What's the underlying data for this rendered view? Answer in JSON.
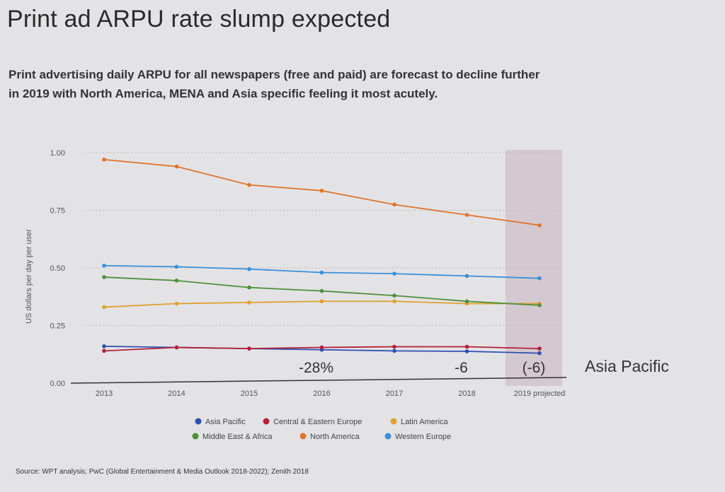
{
  "slide": {
    "title": "Print ad ARPU rate slump expected",
    "subtitle": "Print advertising daily ARPU for all newspapers  (free and paid) are forecast to decline further in 2019 with North America, MENA and Asia specific feeling it most acutely.",
    "source": "Source: WPT analysis; PwC (Global Entertainment & Media Outlook 2018-2022); Zenith 2018"
  },
  "chart_data": {
    "type": "line",
    "title": "",
    "xlabel": "",
    "ylabel": "US dollars per day per user",
    "ylim": [
      0,
      1.0
    ],
    "yticks": [
      "0.00",
      "0.25",
      "0.50",
      "0.75",
      "1.00"
    ],
    "ytick_values": [
      0,
      0.25,
      0.5,
      0.75,
      1.0
    ],
    "categories": [
      "2013",
      "2014",
      "2015",
      "2016",
      "2017",
      "2018",
      "2019 projected"
    ],
    "grid": true,
    "highlight_category": "2019 projected",
    "legend_position": "bottom",
    "series": [
      {
        "name": "Asia Pacific",
        "color": "#2e4fb3",
        "values": [
          0.16,
          0.155,
          0.15,
          0.145,
          0.14,
          0.138,
          0.13
        ]
      },
      {
        "name": "Central & Eastern Europe",
        "color": "#b3203a",
        "values": [
          0.14,
          0.155,
          0.15,
          0.155,
          0.158,
          0.158,
          0.15
        ]
      },
      {
        "name": "Latin America",
        "color": "#e0a030",
        "values": [
          0.33,
          0.345,
          0.35,
          0.355,
          0.355,
          0.345,
          0.345
        ]
      },
      {
        "name": "Middle East & Africa",
        "color": "#4e8f3a",
        "values": [
          0.46,
          0.445,
          0.415,
          0.4,
          0.38,
          0.355,
          0.338
        ]
      },
      {
        "name": "North America",
        "color": "#e0742a",
        "values": [
          0.97,
          0.94,
          0.86,
          0.835,
          0.775,
          0.73,
          0.685
        ]
      },
      {
        "name": "Western Europe",
        "color": "#3a8fd9",
        "values": [
          0.51,
          0.505,
          0.495,
          0.48,
          0.475,
          0.465,
          0.455
        ]
      }
    ],
    "annotations": [
      {
        "text": "-28%",
        "category": "2016"
      },
      {
        "text": "-6",
        "category": "2018"
      },
      {
        "text": "(-6)",
        "category": "2019 projected"
      }
    ],
    "side_label": "Asia Pacific"
  }
}
